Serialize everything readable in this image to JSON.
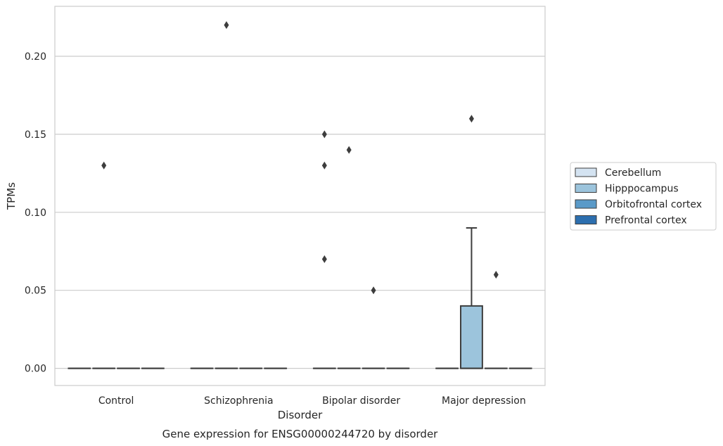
{
  "chart_data": {
    "type": "box",
    "title": "",
    "caption": "Gene expression for ENSG00000244720 by disorder",
    "xlabel": "Disorder",
    "ylabel": "TPMs",
    "ylim": [
      -0.011,
      0.232
    ],
    "yticks": [
      0.0,
      0.05,
      0.1,
      0.15,
      0.2
    ],
    "ytick_labels": [
      "0.00",
      "0.05",
      "0.10",
      "0.15",
      "0.20"
    ],
    "grid": true,
    "legend_position": "right",
    "categories": [
      "Control",
      "Schizophrenia",
      "Bipolar disorder",
      "Major depression"
    ],
    "series": [
      {
        "name": "Cerebellum",
        "color": "#d4e3f1",
        "boxes": [
          {
            "q1": 0,
            "median": 0,
            "q3": 0,
            "whislo": 0,
            "whishi": 0,
            "fliers": []
          },
          {
            "q1": 0,
            "median": 0,
            "q3": 0,
            "whislo": 0,
            "whishi": 0,
            "fliers": []
          },
          {
            "q1": 0,
            "median": 0,
            "q3": 0,
            "whislo": 0,
            "whishi": 0,
            "fliers": [
              0.15,
              0.13,
              0.07
            ]
          },
          {
            "q1": 0,
            "median": 0,
            "q3": 0,
            "whislo": 0,
            "whishi": 0,
            "fliers": []
          }
        ]
      },
      {
        "name": "Hipppocampus",
        "color": "#9cc4dc",
        "boxes": [
          {
            "q1": 0,
            "median": 0,
            "q3": 0,
            "whislo": 0,
            "whishi": 0,
            "fliers": [
              0.13
            ]
          },
          {
            "q1": 0,
            "median": 0,
            "q3": 0,
            "whislo": 0,
            "whishi": 0,
            "fliers": [
              0.22
            ]
          },
          {
            "q1": 0,
            "median": 0,
            "q3": 0,
            "whislo": 0,
            "whishi": 0,
            "fliers": [
              0.14
            ]
          },
          {
            "q1": 0,
            "median": 0,
            "q3": 0.04,
            "whislo": 0,
            "whishi": 0.09,
            "fliers": [
              0.16
            ]
          }
        ]
      },
      {
        "name": "Orbitofrontal cortex",
        "color": "#5a9ac8",
        "boxes": [
          {
            "q1": 0,
            "median": 0,
            "q3": 0,
            "whislo": 0,
            "whishi": 0,
            "fliers": []
          },
          {
            "q1": 0,
            "median": 0,
            "q3": 0,
            "whislo": 0,
            "whishi": 0,
            "fliers": []
          },
          {
            "q1": 0,
            "median": 0,
            "q3": 0,
            "whislo": 0,
            "whishi": 0,
            "fliers": [
              0.05
            ]
          },
          {
            "q1": 0,
            "median": 0,
            "q3": 0,
            "whislo": 0,
            "whishi": 0,
            "fliers": [
              0.06
            ]
          }
        ]
      },
      {
        "name": "Prefrontal cortex",
        "color": "#2d6faf",
        "boxes": [
          {
            "q1": 0,
            "median": 0,
            "q3": 0,
            "whislo": 0,
            "whishi": 0,
            "fliers": []
          },
          {
            "q1": 0,
            "median": 0,
            "q3": 0,
            "whislo": 0,
            "whishi": 0,
            "fliers": []
          },
          {
            "q1": 0,
            "median": 0,
            "q3": 0,
            "whislo": 0,
            "whishi": 0,
            "fliers": []
          },
          {
            "q1": 0,
            "median": 0,
            "q3": 0,
            "whislo": 0,
            "whishi": 0,
            "fliers": []
          }
        ]
      }
    ]
  }
}
